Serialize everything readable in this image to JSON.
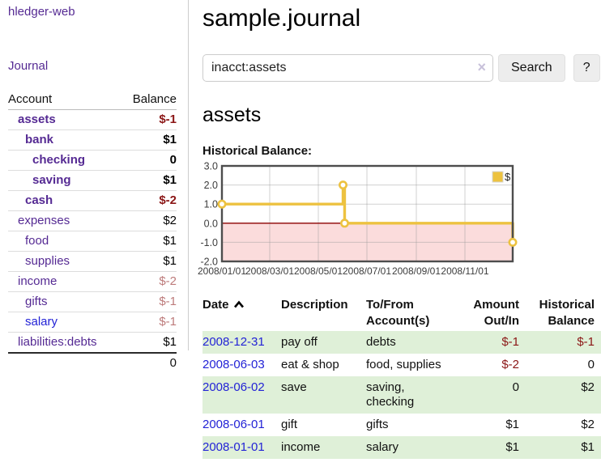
{
  "colors": {
    "link_purple": "#552a93",
    "link_blue": "#2323d6",
    "negative_strong": "#8b1616",
    "negative_muted": "#bd7b7b",
    "row_shade_green": "#dff0d8",
    "chart_line_gold": "#EDC240",
    "chart_negative_fill": "#fbdcdc",
    "chart_zero_line": "#8b0000",
    "chart_border": "#4d4d4d"
  },
  "app_title": "hledger-web",
  "nav": {
    "journal_label": "Journal"
  },
  "accounts_panel": {
    "account_header": "Account",
    "balance_header": "Balance",
    "rows": [
      {
        "account": "assets",
        "depth": 1,
        "bold": true,
        "balance": "$-1",
        "balance_style": "neg-strong"
      },
      {
        "account": "bank",
        "depth": 2,
        "bold": true,
        "balance": "$1",
        "balance_style": "pos"
      },
      {
        "account": "checking",
        "depth": 3,
        "bold": true,
        "balance": "0",
        "balance_style": "pos"
      },
      {
        "account": "saving",
        "depth": 3,
        "bold": true,
        "balance": "$1",
        "balance_style": "pos"
      },
      {
        "account": "cash",
        "depth": 2,
        "bold": true,
        "balance": "$-2",
        "balance_style": "neg-strong"
      },
      {
        "account": "expenses",
        "depth": 1,
        "bold": false,
        "balance": "$2",
        "balance_style": "pos"
      },
      {
        "account": "food",
        "depth": 2,
        "bold": false,
        "balance": "$1",
        "balance_style": "pos"
      },
      {
        "account": "supplies",
        "depth": 2,
        "bold": false,
        "balance": "$1",
        "balance_style": "pos"
      },
      {
        "account": "income",
        "depth": 1,
        "bold": false,
        "balance": "$-2",
        "balance_style": "neg-muted"
      },
      {
        "account": "gifts",
        "depth": 2,
        "bold": false,
        "balance": "$-1",
        "balance_style": "neg-muted"
      },
      {
        "account": "salary",
        "depth": 2,
        "bold": false,
        "balance": "$-1",
        "balance_style": "neg-muted",
        "link_color": "blue"
      },
      {
        "account": "liabilities:debts",
        "depth": 1,
        "bold": false,
        "balance": "$1",
        "balance_style": "pos"
      }
    ],
    "total": "0"
  },
  "main": {
    "title": "sample.journal",
    "search": {
      "value": "inacct:assets",
      "clear_icon": "×",
      "search_button": "Search",
      "help_button": "?"
    },
    "account_title": "assets",
    "chart_label": "Historical Balance:"
  },
  "chart_data": {
    "type": "line",
    "step": true,
    "title": "Historical Balance",
    "series": [
      {
        "name": "$",
        "color": "#EDC240",
        "points": [
          [
            0,
            1
          ],
          [
            152,
            2
          ],
          [
            154,
            0
          ],
          [
            365,
            -1
          ]
        ],
        "point_dates": [
          "2008-01-01",
          "2008-06-01",
          "2008-06-03",
          "2008-12-31"
        ]
      }
    ],
    "x_ticks": [
      {
        "x": 0,
        "label": "2008/01/01"
      },
      {
        "x": 60,
        "label": "2008/03/01"
      },
      {
        "x": 121,
        "label": "2008/05/01"
      },
      {
        "x": 182,
        "label": "2008/07/01"
      },
      {
        "x": 244,
        "label": "2008/09/01"
      },
      {
        "x": 305,
        "label": "2008/11/01"
      }
    ],
    "y_ticks": [
      {
        "v": 3,
        "label": "3.0"
      },
      {
        "v": 2,
        "label": "2.0"
      },
      {
        "v": 1,
        "label": "1.0"
      },
      {
        "v": 0,
        "label": "0.0"
      },
      {
        "v": -1,
        "label": "-1.0"
      },
      {
        "v": -2,
        "label": "-2.0"
      }
    ],
    "xlim": [
      0,
      365
    ],
    "ylim": [
      -2,
      3
    ],
    "grid": true,
    "legend": {
      "label": "$",
      "position": "top-right"
    },
    "negative_region_fill": "#fbdcdc",
    "zero_line_color": "#8b0000"
  },
  "register": {
    "headers": [
      "Date",
      "Description",
      "To/From Account(s)",
      "Amount Out/In",
      "Historical Balance"
    ],
    "sort_icon": "chevron-up",
    "rows": [
      {
        "date": "2008-12-31",
        "description": "pay off",
        "accounts": "debts",
        "amount": "$-1",
        "amount_neg": true,
        "balance": "$-1",
        "balance_neg": true,
        "shaded": true
      },
      {
        "date": "2008-06-03",
        "description": "eat & shop",
        "accounts": "food, supplies",
        "amount": "$-2",
        "amount_neg": true,
        "balance": "0",
        "balance_neg": false,
        "shaded": false
      },
      {
        "date": "2008-06-02",
        "description": "save",
        "accounts": "saving, checking",
        "amount": "0",
        "amount_neg": false,
        "balance": "$2",
        "balance_neg": false,
        "shaded": true
      },
      {
        "date": "2008-06-01",
        "description": "gift",
        "accounts": "gifts",
        "amount": "$1",
        "amount_neg": false,
        "balance": "$2",
        "balance_neg": false,
        "shaded": false
      },
      {
        "date": "2008-01-01",
        "description": "income",
        "accounts": "salary",
        "amount": "$1",
        "amount_neg": false,
        "balance": "$1",
        "balance_neg": false,
        "shaded": true
      }
    ]
  }
}
